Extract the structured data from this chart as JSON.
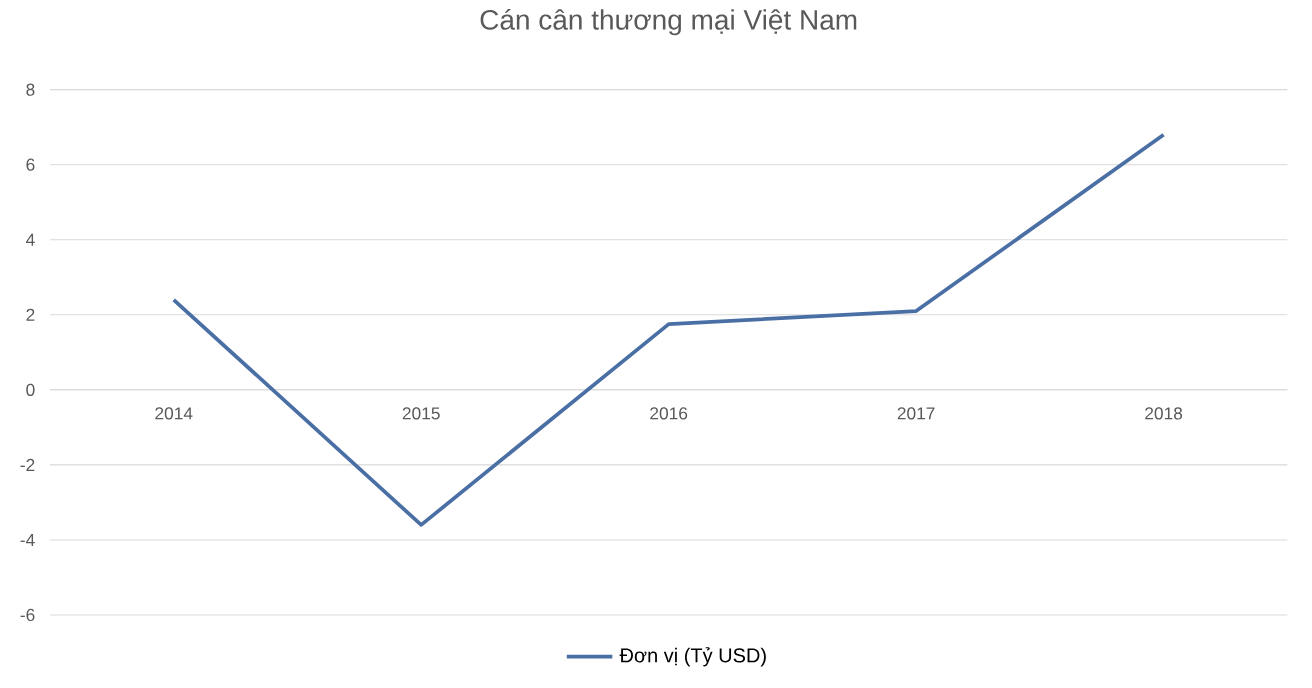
{
  "chart_data": {
    "type": "line",
    "title": "Cán cân thương mại Việt Nam",
    "categories": [
      "2014",
      "2015",
      "2016",
      "2017",
      "2018"
    ],
    "series": [
      {
        "name": "Đơn vị (Tỷ USD)",
        "color": "#4a6fa5",
        "values": [
          2.4,
          -3.6,
          1.75,
          2.1,
          6.8
        ]
      }
    ],
    "ylim": [
      -6,
      8
    ],
    "yticks": [
      -6,
      -4,
      -2,
      0,
      2,
      4,
      6,
      8
    ],
    "grid": "y",
    "legend": "bottom",
    "marker": "none",
    "line_style": "solid"
  }
}
